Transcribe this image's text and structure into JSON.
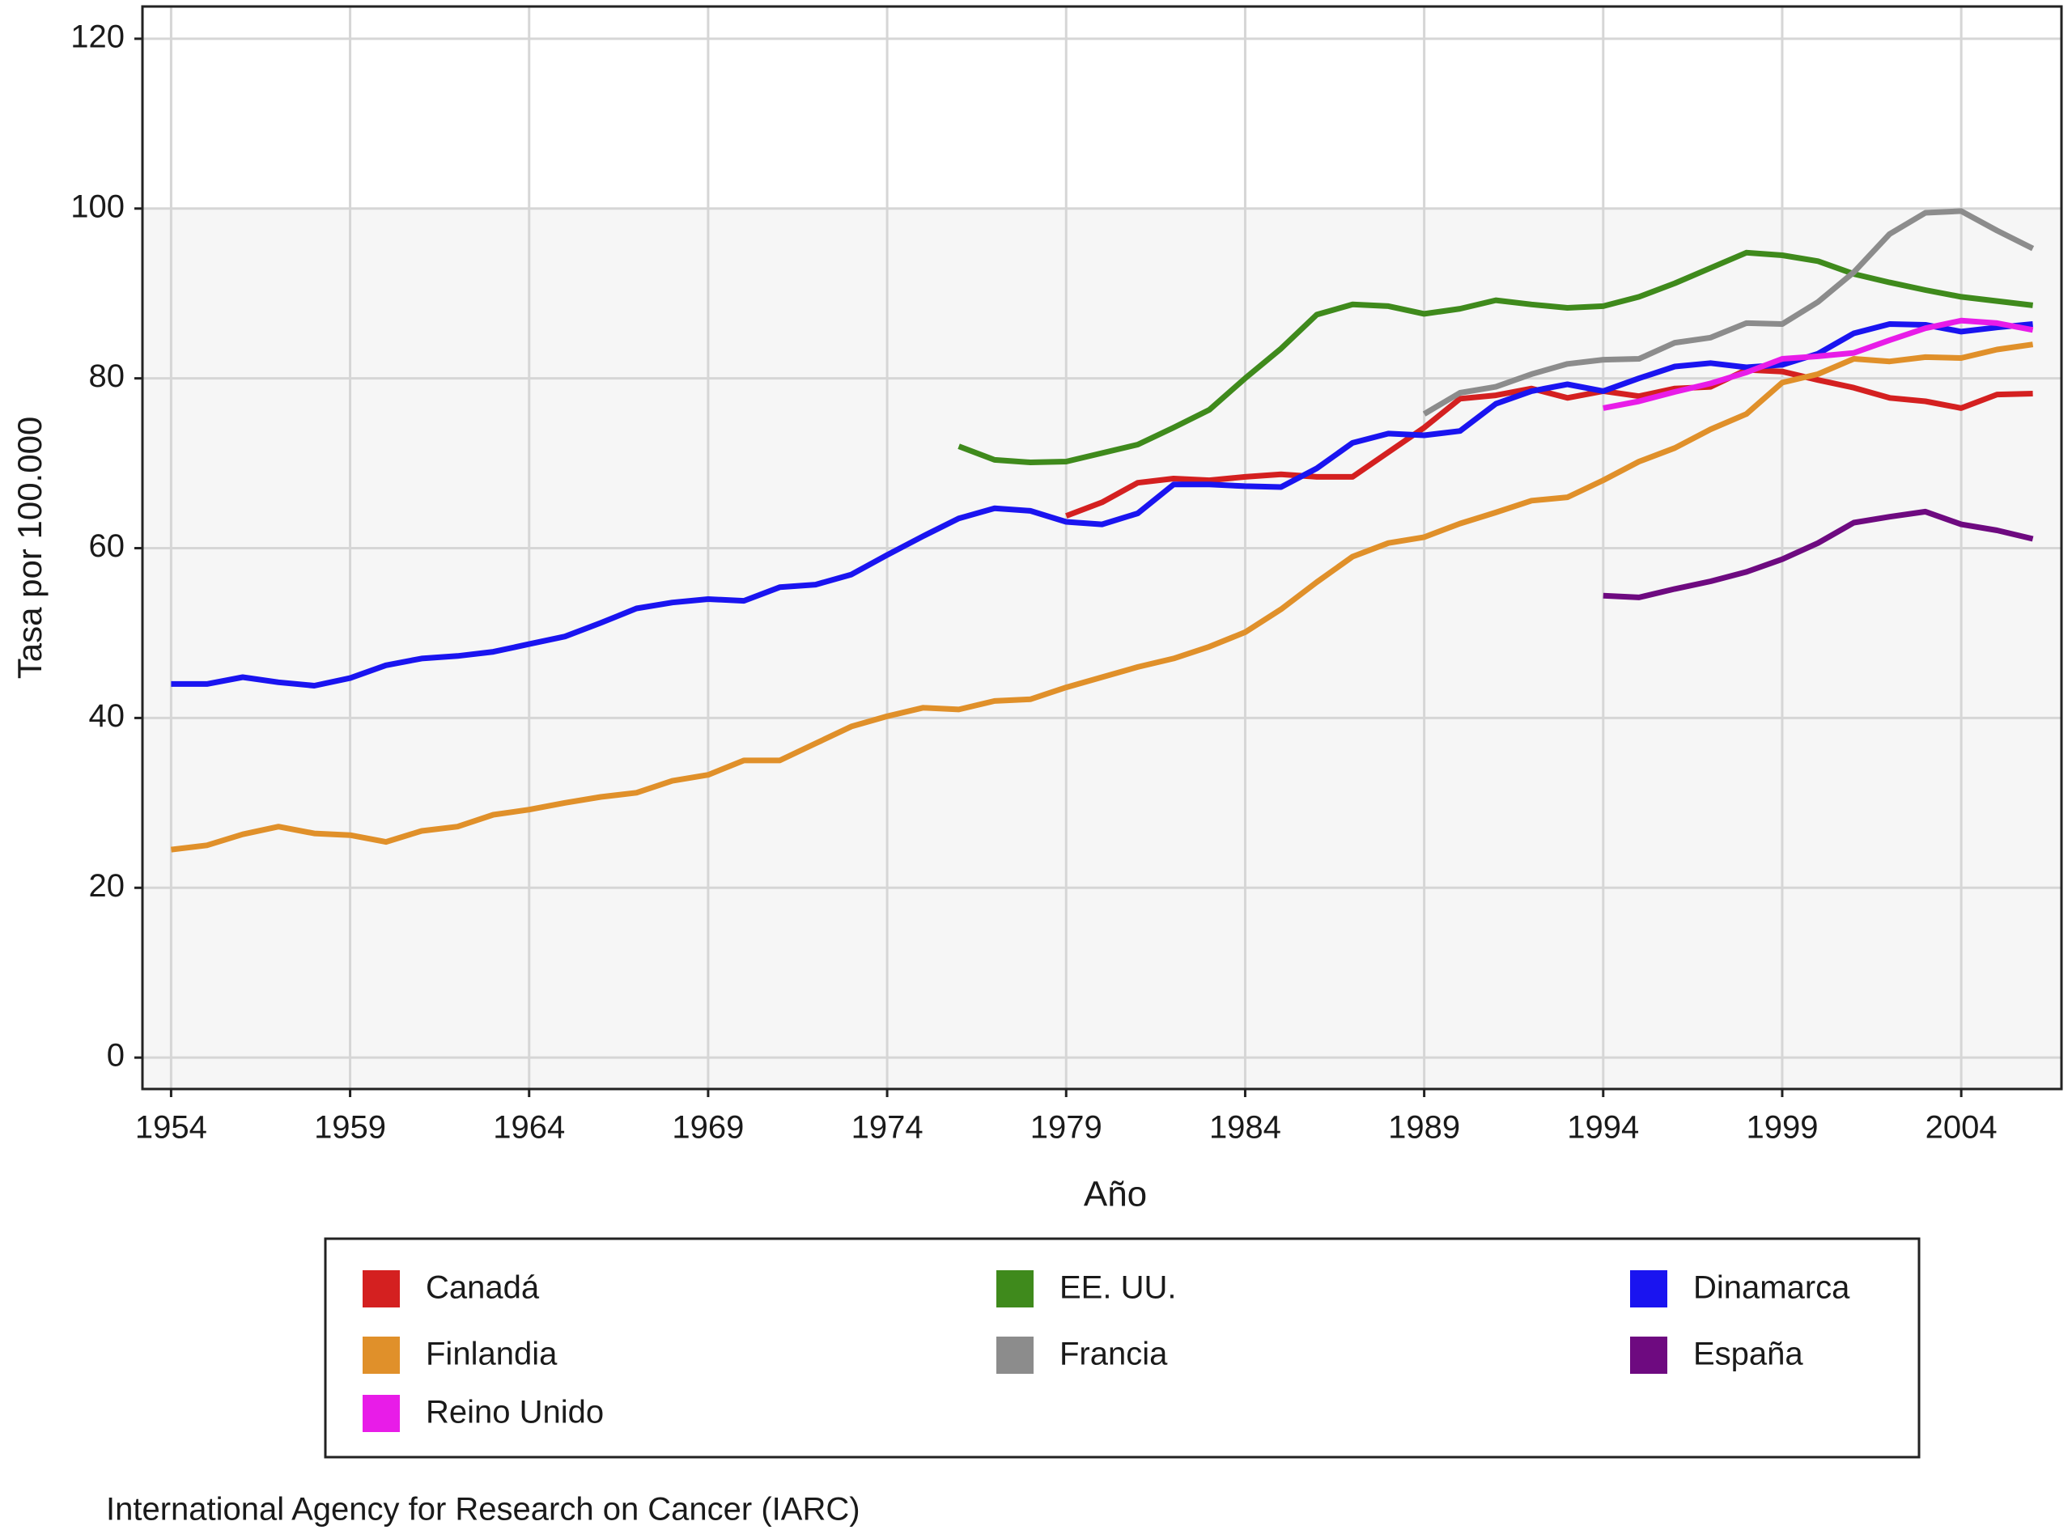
{
  "chart_data": {
    "type": "line",
    "y_label": "Tasa por 100.000",
    "x_label": "Año",
    "source": "International Agency for Research on Cancer (IARC)",
    "x": [
      1954,
      1955,
      1956,
      1957,
      1958,
      1959,
      1960,
      1961,
      1962,
      1963,
      1964,
      1965,
      1966,
      1967,
      1968,
      1969,
      1970,
      1971,
      1972,
      1973,
      1974,
      1975,
      1976,
      1977,
      1978,
      1979,
      1980,
      1981,
      1982,
      1983,
      1984,
      1985,
      1986,
      1987,
      1988,
      1989,
      1990,
      1991,
      1992,
      1993,
      1994,
      1995,
      1996,
      1997,
      1998,
      1999,
      2000,
      2001,
      2002,
      2003,
      2004,
      2005,
      2006
    ],
    "xlim": [
      1953.2,
      2006.8
    ],
    "ylim": [
      -3.7,
      123.8
    ],
    "xticks": [
      1954,
      1959,
      1964,
      1969,
      1974,
      1979,
      1984,
      1989,
      1994,
      1999,
      2004
    ],
    "yticks": [
      0,
      20,
      40,
      60,
      80,
      100,
      120
    ],
    "grid": true,
    "series": [
      {
        "name": "Canadá",
        "color": "#d42020",
        "values": [
          null,
          null,
          null,
          null,
          null,
          null,
          null,
          null,
          null,
          null,
          null,
          null,
          null,
          null,
          null,
          null,
          null,
          null,
          null,
          null,
          null,
          null,
          null,
          null,
          null,
          63.8,
          65.4,
          67.7,
          68.2,
          68,
          68.4,
          68.7,
          68.4,
          68.4,
          71.3,
          74.2,
          77.6,
          78,
          78.8,
          77.7,
          78.5,
          77.9,
          78.8,
          79,
          81,
          80.8,
          79.8,
          78.9,
          77.7,
          77.3,
          76.5,
          78.1,
          78.2
        ]
      },
      {
        "name": "EE. UU.",
        "color": "#3f8a1c",
        "values": [
          null,
          null,
          null,
          null,
          null,
          null,
          null,
          null,
          null,
          null,
          null,
          null,
          null,
          null,
          null,
          null,
          null,
          null,
          null,
          null,
          null,
          null,
          72,
          70.4,
          70.1,
          70.2,
          71.2,
          72.2,
          74.2,
          76.3,
          80,
          83.5,
          87.5,
          88.7,
          88.5,
          87.6,
          88.2,
          89.2,
          88.7,
          88.3,
          88.5,
          89.6,
          91.2,
          93,
          94.8,
          94.5,
          93.8,
          92.3,
          91.3,
          90.4,
          89.6,
          89.1,
          88.6
        ]
      },
      {
        "name": "Dinamarca",
        "color": "#1a14f0",
        "values": [
          44,
          44,
          44.8,
          44.2,
          43.8,
          44.7,
          46.2,
          47,
          47.3,
          47.8,
          48.7,
          49.6,
          51.2,
          52.9,
          53.6,
          54,
          53.8,
          55.4,
          55.7,
          56.9,
          59.2,
          61.4,
          63.5,
          64.7,
          64.4,
          63.1,
          62.8,
          64.1,
          67.5,
          67.5,
          67.3,
          67.2,
          69.4,
          72.4,
          73.5,
          73.3,
          73.8,
          77,
          78.5,
          79.3,
          78.5,
          80,
          81.4,
          81.8,
          81.3,
          81.6,
          82.9,
          85.3,
          86.4,
          86.3,
          85.5,
          86,
          86.4
        ]
      },
      {
        "name": "Finlandia",
        "color": "#e0902a",
        "values": [
          24.5,
          25,
          26.3,
          27.2,
          26.4,
          26.2,
          25.4,
          26.7,
          27.2,
          28.6,
          29.2,
          30,
          30.7,
          31.2,
          32.6,
          33.3,
          35,
          35,
          37,
          39,
          40.2,
          41.2,
          41,
          42,
          42.2,
          43.6,
          44.8,
          46,
          47,
          48.4,
          50.1,
          52.8,
          56,
          59,
          60.6,
          61.3,
          62.9,
          64.2,
          65.6,
          66,
          68,
          70.2,
          71.8,
          74,
          75.8,
          79.5,
          80.5,
          82.3,
          82,
          82.5,
          82.4,
          83.4,
          84
        ]
      },
      {
        "name": "Francia",
        "color": "#8c8c8c",
        "values": [
          null,
          null,
          null,
          null,
          null,
          null,
          null,
          null,
          null,
          null,
          null,
          null,
          null,
          null,
          null,
          null,
          null,
          null,
          null,
          null,
          null,
          null,
          null,
          null,
          null,
          null,
          null,
          null,
          null,
          null,
          null,
          null,
          null,
          null,
          null,
          75.8,
          78.3,
          79,
          80.5,
          81.7,
          82.2,
          82.3,
          84.2,
          84.8,
          86.5,
          86.4,
          89,
          92.5,
          97,
          99.5,
          99.7,
          97.4,
          95.3
        ]
      },
      {
        "name": "España",
        "color": "#6e0a80",
        "values": [
          null,
          null,
          null,
          null,
          null,
          null,
          null,
          null,
          null,
          null,
          null,
          null,
          null,
          null,
          null,
          null,
          null,
          null,
          null,
          null,
          null,
          null,
          null,
          null,
          null,
          null,
          null,
          null,
          null,
          null,
          null,
          null,
          null,
          null,
          null,
          null,
          null,
          null,
          null,
          null,
          54.4,
          54.2,
          55.2,
          56.1,
          57.2,
          58.7,
          60.6,
          63,
          63.7,
          64.3,
          62.8,
          62.1,
          61.1
        ]
      },
      {
        "name": "Reino Unido",
        "color": "#e81ce8",
        "values": [
          null,
          null,
          null,
          null,
          null,
          null,
          null,
          null,
          null,
          null,
          null,
          null,
          null,
          null,
          null,
          null,
          null,
          null,
          null,
          null,
          null,
          null,
          null,
          null,
          null,
          null,
          null,
          null,
          null,
          null,
          null,
          null,
          null,
          null,
          null,
          null,
          null,
          null,
          null,
          null,
          76.5,
          77.3,
          78.4,
          79.4,
          80.7,
          82.3,
          82.6,
          83,
          84.5,
          85.9,
          86.8,
          86.5,
          85.7
        ]
      }
    ]
  }
}
